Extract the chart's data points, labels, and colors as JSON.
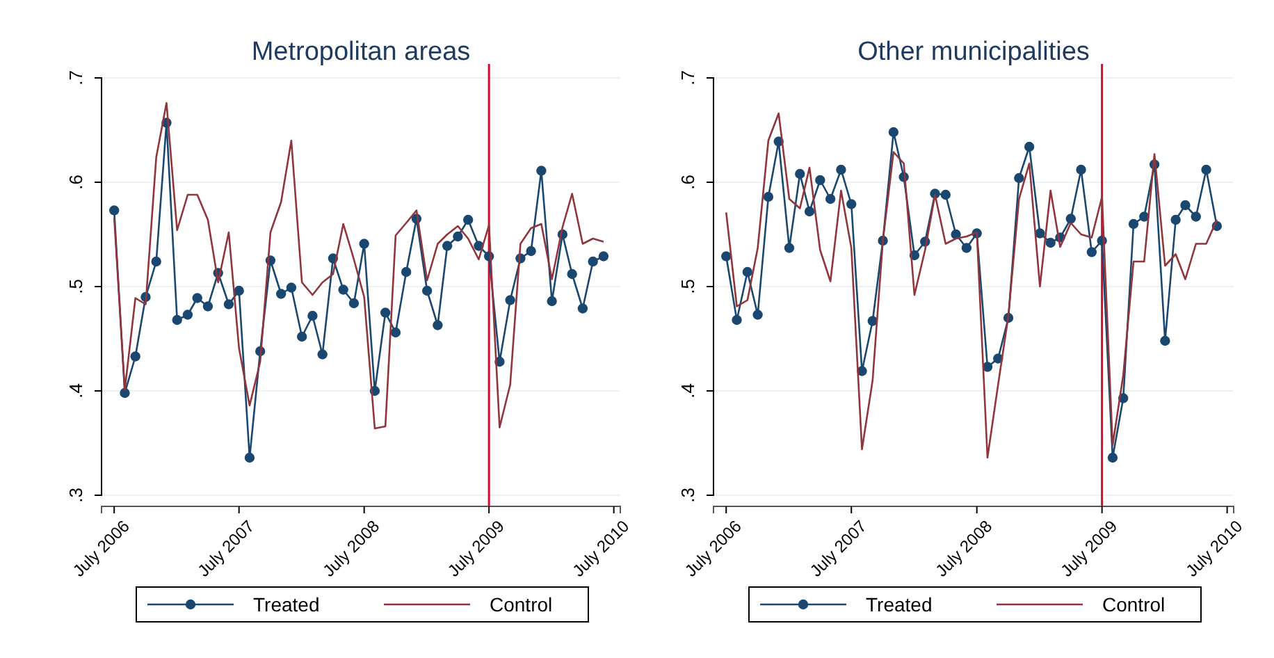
{
  "chart_data": [
    {
      "type": "line",
      "title": "Metropolitan areas",
      "xlim": [
        "2006-05-25",
        "2010-07-20"
      ],
      "xticks": [
        {
          "value": "2006-07",
          "label": "July 2006"
        },
        {
          "value": "2007-07",
          "label": "July 2007"
        },
        {
          "value": "2008-07",
          "label": "July 2008"
        },
        {
          "value": "2009-07",
          "label": "July 2009"
        },
        {
          "value": "2010-07",
          "label": "July 2010"
        }
      ],
      "ylim": [
        0.3,
        0.7
      ],
      "yticks": [
        {
          "value": 0.3,
          "label": ".3"
        },
        {
          "value": 0.4,
          "label": ".4"
        },
        {
          "value": 0.5,
          "label": ".5"
        },
        {
          "value": 0.6,
          "label": ".6"
        },
        {
          "value": 0.7,
          "label": ".7"
        }
      ],
      "grid": "y",
      "legend": "bottom",
      "ref_lines": [
        {
          "axis": "x",
          "value": "2009-07",
          "color": "#c8102e"
        }
      ],
      "x": [
        "2006-07",
        "2006-08",
        "2006-09",
        "2006-10",
        "2006-11",
        "2006-12",
        "2007-01",
        "2007-02",
        "2007-03",
        "2007-04",
        "2007-05",
        "2007-06",
        "2007-07",
        "2007-08",
        "2007-09",
        "2007-10",
        "2007-11",
        "2007-12",
        "2008-01",
        "2008-02",
        "2008-03",
        "2008-04",
        "2008-05",
        "2008-06",
        "2008-07",
        "2008-08",
        "2008-09",
        "2008-10",
        "2008-11",
        "2008-12",
        "2009-01",
        "2009-02",
        "2009-03",
        "2009-04",
        "2009-05",
        "2009-06",
        "2009-07",
        "2009-08",
        "2009-09",
        "2009-10",
        "2009-11",
        "2009-12",
        "2010-01",
        "2010-02",
        "2010-03",
        "2010-04",
        "2010-05",
        "2010-06"
      ],
      "series": [
        {
          "name": "Treated",
          "color": "#1a476f",
          "marker": "circle",
          "values": [
            0.573,
            0.398,
            0.433,
            0.49,
            0.524,
            0.657,
            0.468,
            0.473,
            0.489,
            0.481,
            0.513,
            0.483,
            0.496,
            0.336,
            0.438,
            0.525,
            0.493,
            0.499,
            0.452,
            0.472,
            0.435,
            0.527,
            0.497,
            0.484,
            0.541,
            0.4,
            0.475,
            0.456,
            0.514,
            0.565,
            0.496,
            0.463,
            0.539,
            0.548,
            0.564,
            0.539,
            0.529,
            0.428,
            0.487,
            0.527,
            0.534,
            0.611,
            0.486,
            0.55,
            0.512,
            0.479,
            0.524,
            0.529
          ]
        },
        {
          "name": "Control",
          "color": "#90353b",
          "marker": "none",
          "values": [
            0.566,
            0.401,
            0.489,
            0.483,
            0.624,
            0.676,
            0.554,
            0.588,
            0.588,
            0.564,
            0.504,
            0.552,
            0.441,
            0.386,
            0.428,
            0.552,
            0.581,
            0.64,
            0.504,
            0.492,
            0.504,
            0.512,
            0.56,
            0.526,
            0.49,
            0.364,
            0.366,
            0.549,
            0.561,
            0.573,
            0.506,
            0.541,
            0.55,
            0.558,
            0.546,
            0.526,
            0.559,
            0.365,
            0.406,
            0.541,
            0.556,
            0.56,
            0.507,
            0.557,
            0.589,
            0.541,
            0.546,
            0.543
          ]
        }
      ]
    },
    {
      "type": "line",
      "title": "Other municipalities",
      "xlim": [
        "2006-05-25",
        "2010-07-20"
      ],
      "xticks": [
        {
          "value": "2006-07",
          "label": "July 2006"
        },
        {
          "value": "2007-07",
          "label": "July 2007"
        },
        {
          "value": "2008-07",
          "label": "July 2008"
        },
        {
          "value": "2009-07",
          "label": "July 2009"
        },
        {
          "value": "2010-07",
          "label": "July 2010"
        }
      ],
      "ylim": [
        0.3,
        0.7
      ],
      "yticks": [
        {
          "value": 0.3,
          "label": ".3"
        },
        {
          "value": 0.4,
          "label": ".4"
        },
        {
          "value": 0.5,
          "label": ".5"
        },
        {
          "value": 0.6,
          "label": ".6"
        },
        {
          "value": 0.7,
          "label": ".7"
        }
      ],
      "grid": "y",
      "legend": "bottom",
      "ref_lines": [
        {
          "axis": "x",
          "value": "2009-07",
          "color": "#c8102e"
        }
      ],
      "x": [
        "2006-07",
        "2006-08",
        "2006-09",
        "2006-10",
        "2006-11",
        "2006-12",
        "2007-01",
        "2007-02",
        "2007-03",
        "2007-04",
        "2007-05",
        "2007-06",
        "2007-07",
        "2007-08",
        "2007-09",
        "2007-10",
        "2007-11",
        "2007-12",
        "2008-01",
        "2008-02",
        "2008-03",
        "2008-04",
        "2008-05",
        "2008-06",
        "2008-07",
        "2008-08",
        "2008-09",
        "2008-10",
        "2008-11",
        "2008-12",
        "2009-01",
        "2009-02",
        "2009-03",
        "2009-04",
        "2009-05",
        "2009-06",
        "2009-07",
        "2009-08",
        "2009-09",
        "2009-10",
        "2009-11",
        "2009-12",
        "2010-01",
        "2010-02",
        "2010-03",
        "2010-04",
        "2010-05",
        "2010-06"
      ],
      "series": [
        {
          "name": "Treated",
          "color": "#1a476f",
          "marker": "circle",
          "values": [
            0.529,
            0.468,
            0.514,
            0.473,
            0.586,
            0.639,
            0.537,
            0.608,
            0.572,
            0.602,
            0.584,
            0.612,
            0.579,
            0.419,
            0.467,
            0.544,
            0.648,
            0.605,
            0.53,
            0.543,
            0.589,
            0.588,
            0.55,
            0.537,
            0.551,
            0.423,
            0.431,
            0.47,
            0.604,
            0.634,
            0.551,
            0.542,
            0.547,
            0.565,
            0.612,
            0.533,
            0.544,
            0.336,
            0.393,
            0.56,
            0.567,
            0.617,
            0.448,
            0.564,
            0.578,
            0.567,
            0.612,
            0.558
          ]
        },
        {
          "name": "Control",
          "color": "#90353b",
          "marker": "none",
          "values": [
            0.571,
            0.481,
            0.487,
            0.537,
            0.64,
            0.666,
            0.584,
            0.575,
            0.614,
            0.535,
            0.505,
            0.592,
            0.537,
            0.344,
            0.41,
            0.544,
            0.629,
            0.618,
            0.492,
            0.535,
            0.588,
            0.541,
            0.546,
            0.548,
            0.552,
            0.336,
            0.406,
            0.472,
            0.584,
            0.618,
            0.5,
            0.592,
            0.538,
            0.561,
            0.55,
            0.547,
            0.586,
            0.348,
            0.415,
            0.524,
            0.524,
            0.627,
            0.52,
            0.531,
            0.507,
            0.541,
            0.541,
            0.564
          ]
        }
      ]
    }
  ]
}
